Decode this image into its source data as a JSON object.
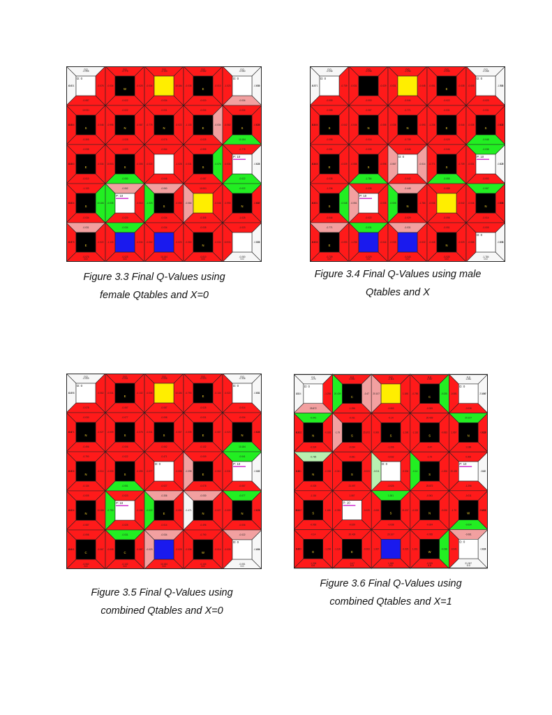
{
  "colors": {
    "red": "#ff1a1a",
    "dark_red": "#d80000",
    "pink": "#f2a0a0",
    "salmon": "#ee5555",
    "green": "#22ee22",
    "light_green": "#b8f0b0",
    "white_tri": "#f7f7f7",
    "black": "#000000",
    "yellow": "#ffee00",
    "blue": "#1a1aee",
    "magenta": "#cc22cc"
  },
  "figures": [
    {
      "id": "fig-3-3",
      "caption_lines": [
        "Figure 3.3 Final Q-Values using",
        "female Qtables and X=0"
      ],
      "center_types": [
        [
          "white",
          "black",
          "yellow",
          "black",
          "white"
        ],
        [
          "black",
          "black",
          "black",
          "black",
          "black"
        ],
        [
          "black",
          "black",
          "white",
          "black",
          "white"
        ],
        [
          "black",
          "white",
          "black",
          "yellow",
          "black"
        ],
        [
          "black",
          "blue",
          "blue",
          "black",
          "white"
        ]
      ],
      "center_letters": [
        [
          "",
          "W",
          "",
          "E",
          ""
        ],
        [
          "S",
          "N",
          "N",
          "E",
          "S"
        ],
        [
          "E",
          "S",
          "",
          "S",
          ""
        ],
        [
          "S",
          "",
          "S",
          "",
          "N"
        ],
        [
          "E",
          "",
          "",
          "N",
          ""
        ]
      ],
      "badges": [
        [
          "D: 0",
          "",
          "",
          "",
          "D: 0"
        ],
        [
          "",
          "",
          "",
          "",
          ""
        ],
        [
          "",
          "",
          "",
          "",
          "P: 10"
        ],
        [
          "",
          "P: 10",
          "",
          "",
          ""
        ],
        [
          "",
          "",
          "",
          "",
          ""
        ]
      ],
      "green_tris": [
        "1,4,b",
        "2,1,b",
        "2,3,r",
        "2,4,b",
        "3,0,r",
        "3,1,l",
        "3,2,l",
        "3,4,t",
        "4,1,t"
      ],
      "pink_tris": [
        "0,4,b",
        "1,3,r",
        "3,1,t",
        "3,2,t",
        "3,3,l",
        "4,0,t"
      ],
      "white_tris": [],
      "top_labels": [
        "0.0",
        "0.0",
        "0.0",
        "0.0",
        "0.0"
      ],
      "bottom_labels": [
        "0.0",
        "0.0",
        "0.0",
        "0.0",
        "0.0"
      ],
      "left_labels": [
        "0.0",
        "0.0",
        "0.0",
        "0.0",
        "0.0"
      ],
      "right_labels": [
        "0.0",
        "0.0",
        "0.0",
        "0.0",
        "0.0"
      ],
      "sample_values": [
        "-0.995",
        "-0.087",
        "-0.031",
        "-0.076",
        "-0.775",
        "-0.022",
        "-0.034",
        "-0.025",
        "-1.133",
        "-0.034",
        "-0.034",
        "10.184",
        "-0.062",
        "-0.020",
        "-0.035",
        "-0.010",
        "-0.060",
        "-0.034",
        "-1.023",
        "-0.050",
        "10.931",
        "-0.305",
        "-0.064",
        "-0.046",
        "-0.022",
        "-1.028"
      ]
    },
    {
      "id": "fig-3-4",
      "caption_lines": [
        "Figure 3.4 Final Q-Values using male",
        "Qtables and X"
      ],
      "center_types": [
        [
          "white",
          "black",
          "yellow",
          "black",
          "white"
        ],
        [
          "black",
          "black",
          "black",
          "black",
          "black"
        ],
        [
          "black",
          "black",
          "white",
          "black",
          "white"
        ],
        [
          "black",
          "white",
          "black",
          "yellow",
          "black"
        ],
        [
          "black",
          "blue",
          "blue",
          "black",
          "white"
        ]
      ],
      "center_letters": [
        [
          "",
          "",
          "",
          "E",
          ""
        ],
        [
          "S",
          "N",
          "N",
          "E",
          "S"
        ],
        [
          "E",
          "S",
          "",
          "S",
          ""
        ],
        [
          "S",
          "",
          "N",
          "",
          "N"
        ],
        [
          "E",
          "",
          "",
          "N",
          ""
        ]
      ],
      "badges": [
        [
          "D: 0",
          "",
          "",
          "",
          "D: 0"
        ],
        [
          "",
          "",
          "",
          "",
          ""
        ],
        [
          "",
          "",
          "D: 0",
          "",
          "P: 10"
        ],
        [
          "",
          "P: 10",
          "",
          "",
          ""
        ],
        [
          "",
          "",
          "",
          "",
          "D: 0"
        ]
      ],
      "green_tris": [
        "1,4,b",
        "2,1,b",
        "2,3,b",
        "2,4,t",
        "3,0,r",
        "3,2,l",
        "3,4,t",
        "4,1,t"
      ],
      "pink_tris": [
        "2,2,l",
        "2,2,r",
        "3,1,l",
        "3,2,t",
        "4,0,t",
        "4,2,t"
      ],
      "white_tris": [],
      "top_labels": [
        "0.0",
        "0.0",
        "0.0",
        "0.0",
        "0.0"
      ],
      "bottom_labels": [
        "0.0",
        "0.0",
        "0.0",
        "0.0",
        "0.0"
      ],
      "left_labels": [
        "0.0",
        "0.0",
        "0.0",
        "0.0",
        "0.0"
      ],
      "right_labels": [
        "0.0",
        "0.0",
        "0.0",
        "0.0",
        "0.0"
      ],
      "sample_values": [
        "-0.046",
        "-0.055",
        "-0.771",
        "-0.739",
        "-0.038",
        "-0.093",
        "-0.031",
        "-0.029",
        "-1.236",
        "-0.044",
        "-0.031",
        "-0.048",
        "-0.035",
        "-0.022",
        "-0.051",
        "-0.035",
        "-0.448",
        "-0.029",
        "-0.005",
        "-1.784",
        "-0.088",
        "-0.098",
        "-0.046",
        "-0.042",
        "-0.067",
        "-0.014"
      ]
    },
    {
      "id": "fig-3-5",
      "caption_lines": [
        "Figure 3.5 Final Q-Values using",
        "combined Qtables and X=0"
      ],
      "center_types": [
        [
          "white",
          "black",
          "yellow",
          "black",
          "white"
        ],
        [
          "black",
          "black",
          "black",
          "black",
          "black"
        ],
        [
          "black",
          "black",
          "white",
          "black",
          "white"
        ],
        [
          "black",
          "white",
          "black",
          "black",
          "black"
        ],
        [
          "black",
          "black",
          "blue",
          "black",
          "white"
        ]
      ],
      "center_letters": [
        [
          "",
          "E",
          "",
          "E",
          ""
        ],
        [
          "N",
          "S",
          "S",
          "E",
          "N"
        ],
        [
          "N",
          "S",
          "",
          "E",
          ""
        ],
        [
          "N",
          "",
          "E",
          "N",
          "N"
        ],
        [
          "C",
          "C",
          "",
          "W",
          ""
        ]
      ],
      "badges": [
        [
          "D: 0",
          "",
          "",
          "",
          "D: 0"
        ],
        [
          "",
          "",
          "",
          "",
          ""
        ],
        [
          "",
          "",
          "D: 0",
          "",
          "P: 10"
        ],
        [
          "",
          "P: 10",
          "",
          "",
          ""
        ],
        [
          "",
          "",
          "",
          "",
          "D: 0"
        ]
      ],
      "green_tris": [
        "1,4,b",
        "2,1,b",
        "2,4,t",
        "3,1,l",
        "3,2,l",
        "3,4,t",
        "4,1,t"
      ],
      "pink_tris": [
        "2,3,l",
        "3,3,t",
        "3,2,t",
        "4,2,l",
        "4,2,t",
        "4,4,t"
      ],
      "white_tris": [
        "3,3,l"
      ],
      "top_labels": [
        "0.0",
        "0.0",
        "0.0",
        "0.0",
        "0.0"
      ],
      "bottom_labels": [
        "0.0",
        "0.0",
        "0.0",
        "0.0",
        "0.0"
      ],
      "left_labels": [
        "0.0",
        "0.0",
        "0.0",
        "0.0",
        "0.0"
      ],
      "right_labels": [
        "0.0",
        "0.0",
        "0.0",
        "0.0",
        "0.0"
      ],
      "sample_values": [
        "-0.009",
        "-0.078",
        "-0.098",
        "-0.062",
        "-0.041",
        "-0.067",
        "-0.031",
        "-0.132",
        "-0.005",
        "-0.087",
        "-0.034",
        "10.184",
        "-0.023",
        "-0.025",
        "-0.790",
        "-0.134",
        "-0.336",
        "-0.014",
        "-0.022",
        "-0.051",
        "-0.030",
        "-0.496",
        "-0.471",
        "-0.027",
        "-0.077",
        "-0.006"
      ]
    },
    {
      "id": "fig-3-6",
      "caption_lines": [
        "Figure 3.6 Final Q-Values using",
        "combined Qtables and X=1"
      ],
      "center_types": [
        [
          "white",
          "black",
          "yellow",
          "black",
          "white"
        ],
        [
          "black",
          "black",
          "black",
          "black",
          "black"
        ],
        [
          "black",
          "black",
          "white",
          "black",
          "white"
        ],
        [
          "black",
          "white",
          "black",
          "black",
          "black"
        ],
        [
          "black",
          "black",
          "blue",
          "black",
          "white"
        ]
      ],
      "center_letters": [
        [
          "",
          "C",
          "",
          "C",
          ""
        ],
        [
          "N",
          "S",
          "S",
          "S",
          "N"
        ],
        [
          "N",
          "S",
          "",
          "S",
          ""
        ],
        [
          "S",
          "",
          "S",
          "N",
          "W"
        ],
        [
          "E",
          "E",
          "",
          "W",
          ""
        ]
      ],
      "badges": [
        [
          "D: 0",
          "",
          "",
          "",
          "D: 0"
        ],
        [
          "",
          "",
          "",
          "",
          ""
        ],
        [
          "",
          "",
          "D: 0",
          "",
          "P: 10"
        ],
        [
          "",
          "P: 10",
          "",
          "",
          ""
        ],
        [
          "",
          "",
          "",
          "",
          "D: 0"
        ]
      ],
      "green_tris": [
        "0,1,l",
        "0,3,r",
        "1,0,t",
        "1,4,t",
        "2,3,l",
        "3,2,t",
        "3,4,b",
        "4,3,r"
      ],
      "pink_tris": [
        "0,0,b",
        "0,1,r",
        "0,2,l",
        "1,1,l",
        "2,2,l",
        "4,4,t"
      ],
      "white_tris": [],
      "light_green_tris": [
        "2,0,t",
        "2,2,l"
      ],
      "top_labels": [
        "0.0",
        "0.0",
        "0.0",
        "0.0",
        "0.0"
      ],
      "bottom_labels": [
        "0.0",
        "0.0",
        "0.0",
        "0.0",
        "0.0"
      ],
      "left_labels": [
        "0.0",
        "0.0",
        "0.0",
        "0.0",
        "0.0"
      ],
      "right_labels": [
        "0.0",
        "0.0",
        "0.0",
        "0.0",
        "0.0"
      ],
      "sample_values": [
        "-1.79",
        "25.872",
        "-0.14",
        "-1.206",
        "0.000",
        "-1.296",
        "20.439",
        "-0.47",
        "-1.116",
        "-0.063",
        "20.107",
        "1.188",
        "1.067",
        "-0.029",
        "-0.785",
        "-0.025",
        "1.261",
        "-0.038",
        "-0.081",
        "21.097",
        "-0.041",
        "-0.024",
        "-0.032",
        "-0.026",
        "-0.011",
        "-0.034"
      ]
    }
  ]
}
